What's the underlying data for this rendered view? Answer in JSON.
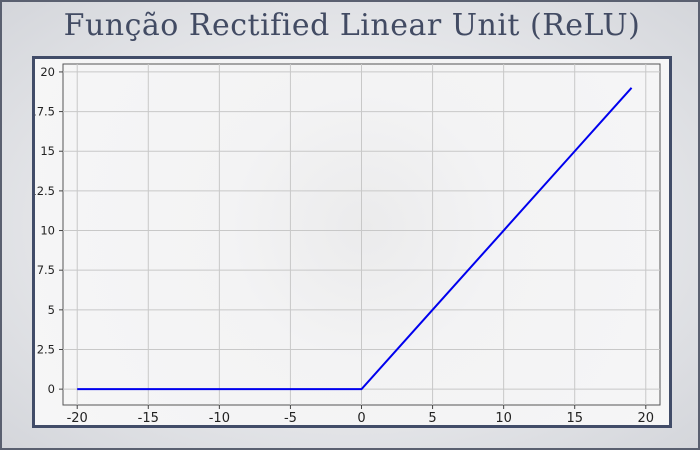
{
  "title": "Função Rectified Linear Unit (ReLU)",
  "chart_data": {
    "type": "line",
    "title": "Função Rectified Linear Unit (ReLU)",
    "xlabel": "",
    "ylabel": "",
    "xlim": [
      -21,
      21
    ],
    "ylim": [
      -1,
      20.5
    ],
    "xticks": [
      -20,
      -15,
      -10,
      -5,
      0,
      5,
      10,
      15,
      20
    ],
    "xtick_labels": [
      "-20",
      "-15",
      "-10",
      "-5",
      "0",
      "5",
      "10",
      "15",
      "20"
    ],
    "yticks": [
      0,
      2.5,
      5,
      7.5,
      10,
      12.5,
      15,
      17.5,
      20
    ],
    "ytick_labels": [
      "0",
      "2.5",
      "5",
      "7.5",
      "10",
      "12.5",
      "15",
      "17.5",
      "20"
    ],
    "grid": true,
    "series": [
      {
        "color": "#0000ee",
        "x": [
          -20,
          -15,
          -10,
          -5,
          0,
          5,
          10,
          15,
          19
        ],
        "y": [
          0,
          0,
          0,
          0,
          0,
          5,
          10,
          15,
          19
        ]
      }
    ]
  }
}
